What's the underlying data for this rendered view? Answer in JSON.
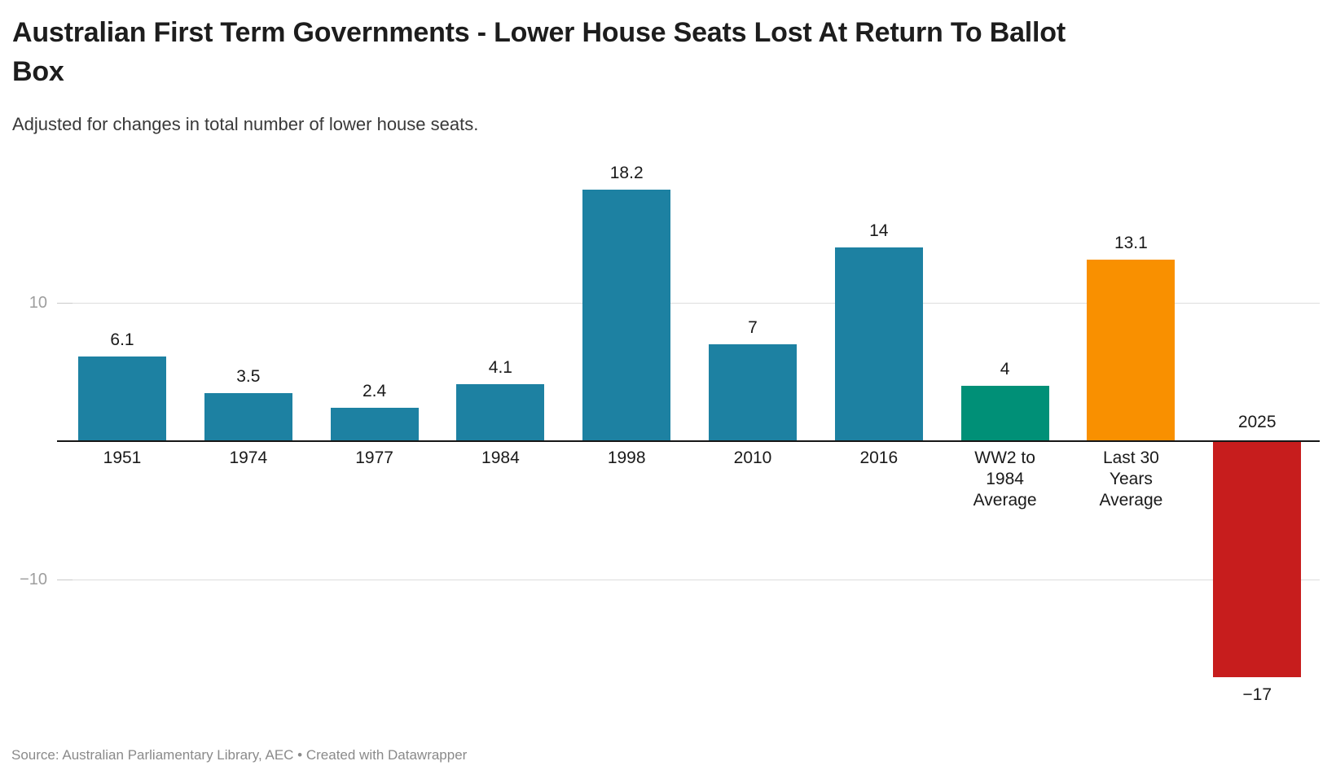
{
  "header": {
    "title": "Australian First Term Governments - Lower House Seats Lost At Return To Ballot Box",
    "title_lines": [
      "Australian First Term Governments - Lower House Seats Lost At Return To Ballot",
      "Box"
    ],
    "subtitle": "Adjusted for changes in total number of lower house seats."
  },
  "chart_data": {
    "type": "bar",
    "title": "Australian First Term Governments - Lower House Seats Lost At Return To Ballot Box",
    "subtitle": "Adjusted for changes in total number of lower house seats.",
    "categories": [
      "1951",
      "1974",
      "1977",
      "1984",
      "1998",
      "2010",
      "2016",
      "WW2 to 1984 Average",
      "Last 30 Years Average",
      "2025"
    ],
    "category_lines": [
      [
        "1951"
      ],
      [
        "1974"
      ],
      [
        "1977"
      ],
      [
        "1984"
      ],
      [
        "1998"
      ],
      [
        "2010"
      ],
      [
        "2016"
      ],
      [
        "WW2 to",
        "1984",
        "Average"
      ],
      [
        "Last 30",
        "Years",
        "Average"
      ],
      [
        "2025"
      ]
    ],
    "values": [
      6.1,
      3.5,
      2.4,
      4.1,
      18.2,
      7,
      14,
      4,
      13.1,
      -17
    ],
    "value_labels": [
      "6.1",
      "3.5",
      "2.4",
      "4.1",
      "18.2",
      "7",
      "14",
      "4",
      "13.1",
      "−17"
    ],
    "bar_colors": [
      "#1d81a2",
      "#1d81a2",
      "#1d81a2",
      "#1d81a2",
      "#1d81a2",
      "#1d81a2",
      "#1d81a2",
      "#009077",
      "#f99000",
      "#c71d1d"
    ],
    "xlabel": "",
    "ylabel": "",
    "y_axis": {
      "ticks": [
        10,
        -10
      ],
      "tick_labels": [
        "10",
        "−10"
      ],
      "baseline": 0
    },
    "ylim": [
      -19,
      20
    ],
    "grid": true,
    "legend": false
  },
  "footer": {
    "source": "Source: Australian Parliamentary Library, AEC • Created with Datawrapper"
  },
  "colors": {
    "teal": "#1d81a2",
    "green": "#009077",
    "orange": "#f99000",
    "red": "#c71d1d",
    "grid": "#dddddd",
    "axis": "#161616",
    "tick_label": "#9e9e9e",
    "text": "#1a1a1a",
    "source": "#8a8a8a",
    "background": "#ffffff"
  }
}
